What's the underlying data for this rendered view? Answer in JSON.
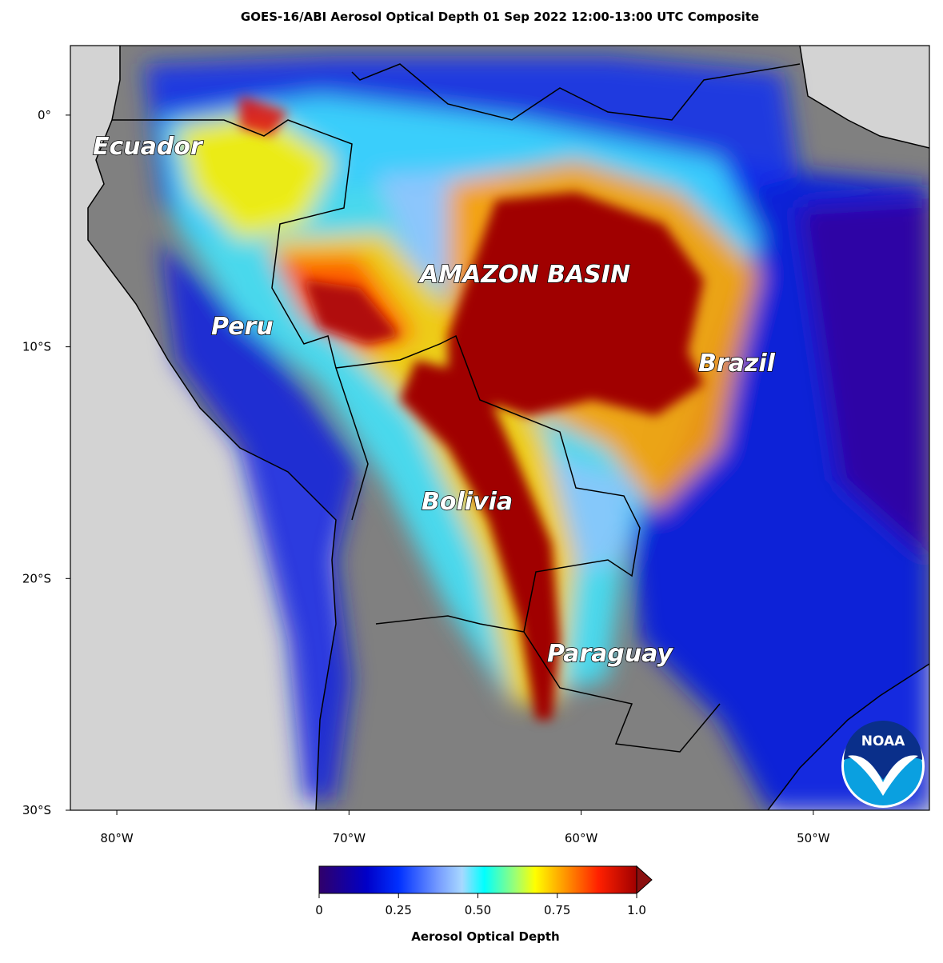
{
  "title": "GOES-16/ABI Aerosol Optical Depth  01 Sep 2022 12:00-13:00 UTC Composite",
  "map": {
    "lonlim": [
      -82,
      -45
    ],
    "latlim": [
      -30,
      3
    ],
    "lon_ticks": [
      {
        "value": -80,
        "label": "80°W"
      },
      {
        "value": -70,
        "label": "70°W"
      },
      {
        "value": -60,
        "label": "60°W"
      },
      {
        "value": -50,
        "label": "50°W"
      }
    ],
    "lat_ticks": [
      {
        "value": 0,
        "label": "0°"
      },
      {
        "value": -10,
        "label": "10°S"
      },
      {
        "value": -20,
        "label": "20°S"
      },
      {
        "value": -30,
        "label": "30°S"
      }
    ],
    "region_labels": [
      "Ecuador",
      "AMAZON BASIN",
      "Peru",
      "Brazil",
      "Bolivia",
      "Paraguay"
    ]
  },
  "colorbar": {
    "label": "Aerosol Optical Depth",
    "lim": [
      0,
      1
    ],
    "ticks": [
      0,
      0.25,
      {
        "value": 0.5,
        "label": "0.50"
      },
      0.75,
      {
        "value": 1,
        "label": "1.0"
      }
    ]
  },
  "logo": {
    "text": "NOAA"
  }
}
